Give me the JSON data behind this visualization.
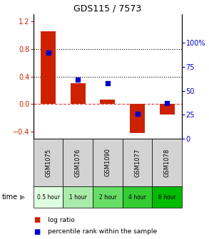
{
  "title": "GDS115 / 7573",
  "samples": [
    "GSM1075",
    "GSM1076",
    "GSM1090",
    "GSM1077",
    "GSM1078"
  ],
  "time_labels": [
    "0.5 hour",
    "1 hour",
    "2 hour",
    "4 hour",
    "6 hour"
  ],
  "time_colors": [
    "#e0ffe0",
    "#aaeaaa",
    "#66dd66",
    "#33cc33",
    "#00bb00"
  ],
  "log_ratio": [
    1.05,
    0.3,
    0.07,
    -0.42,
    -0.15
  ],
  "percentile": [
    90,
    62,
    58,
    26,
    37
  ],
  "left_ylim": [
    -0.5,
    1.3
  ],
  "right_ylim": [
    0,
    130
  ],
  "left_yticks": [
    -0.4,
    0.0,
    0.4,
    0.8,
    1.2
  ],
  "right_yticks": [
    0,
    25,
    50,
    75,
    100
  ],
  "bar_color": "#cc2200",
  "scatter_color": "#0000cc",
  "zero_line_color": "#cc4444",
  "grid_color": "#333333",
  "background_color": "#ffffff",
  "label_log": "log ratio",
  "label_pct": "percentile rank within the sample",
  "bar_width": 0.5
}
